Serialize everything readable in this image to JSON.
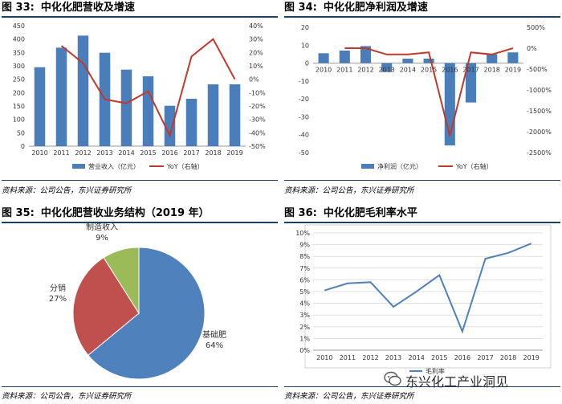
{
  "colors": {
    "bar": "#4a7ebb",
    "line": "#c0392b",
    "pie_blue": "#4f81bd",
    "pie_red": "#c0504d",
    "pie_green": "#9bbb59",
    "rule": "#1f3f66",
    "grid": "#d9d9d9"
  },
  "watermark": "东兴化工产业洞见",
  "chart_data": [
    {
      "type": "bar",
      "figure_label": "图 33:",
      "title": "中化化肥营收及增速",
      "categories": [
        "2010",
        "2011",
        "2012",
        "2013",
        "2014",
        "2015",
        "2016",
        "2017",
        "2018",
        "2019"
      ],
      "series": [
        {
          "name": "营业收入（亿元）",
          "type": "bar",
          "axis": "left",
          "values": [
            295,
            368,
            413,
            349,
            286,
            261,
            151,
            177,
            231,
            231
          ]
        },
        {
          "name": "YoY（右轴）",
          "type": "line",
          "axis": "right",
          "values": [
            null,
            25,
            12,
            -15,
            -18,
            -9,
            -42,
            17,
            30,
            0
          ]
        }
      ],
      "ylim": [
        0,
        450
      ],
      "yticks": [
        "0",
        "50",
        "100",
        "150",
        "200",
        "250",
        "300",
        "350",
        "400",
        "450"
      ],
      "y2lim": [
        -50,
        40
      ],
      "y2ticks": [
        "-50%",
        "-40%",
        "-30%",
        "-20%",
        "-10%",
        "0%",
        "10%",
        "20%",
        "30%",
        "40%"
      ],
      "legend_position": "bottom",
      "source": "资料来源：公司公告，东兴证券研究所"
    },
    {
      "type": "bar",
      "figure_label": "图 34:",
      "title": "中化化肥净利润及增速",
      "categories": [
        "2010",
        "2011",
        "2012",
        "2013",
        "2014",
        "2015",
        "2016",
        "2017",
        "2018",
        "2019"
      ],
      "series": [
        {
          "name": "净利润（亿元）",
          "type": "bar",
          "axis": "left",
          "values": [
            5.5,
            7,
            9.5,
            -5,
            2.5,
            2.5,
            -46,
            -22,
            5,
            6
          ]
        },
        {
          "name": "YoY（右轴）",
          "type": "line",
          "axis": "right",
          "values": [
            null,
            0,
            0,
            -150,
            -150,
            -100,
            -2100,
            -100,
            -150,
            0
          ]
        }
      ],
      "ylim": [
        -50,
        20
      ],
      "yticks": [
        "-50",
        "-40",
        "-30",
        "-20",
        "-10",
        "0",
        "10",
        "20"
      ],
      "y2lim": [
        -2500,
        500
      ],
      "y2ticks": [
        "-2500%",
        "-2000%",
        "-1500%",
        "-1000%",
        "-500%",
        "0%",
        "500%"
      ],
      "legend_position": "bottom",
      "source": "资料来源：公司公告，东兴证券研究所"
    },
    {
      "type": "pie",
      "figure_label": "图 35:",
      "title": "中化化肥营收业务结构（2019 年）",
      "slices": [
        {
          "label": "基础肥",
          "value": 64,
          "pct": "64%"
        },
        {
          "label": "分销",
          "value": 27,
          "pct": "27%"
        },
        {
          "label": "制造收入",
          "value": 9,
          "pct": "9%"
        }
      ],
      "source": "资料来源：公司公告，东兴证券研究所"
    },
    {
      "type": "line",
      "figure_label": "图 36:",
      "title": "中化化肥毛利率水平",
      "categories": [
        "2010",
        "2011",
        "2012",
        "2013",
        "2014",
        "2015",
        "2016",
        "2017",
        "2018",
        "2019"
      ],
      "series": [
        {
          "name": "毛利率",
          "values": [
            5.1,
            5.7,
            5.8,
            3.7,
            5.0,
            6.4,
            1.6,
            7.8,
            8.3,
            9.1
          ]
        }
      ],
      "ylim": [
        0,
        10
      ],
      "yticks": [
        "0%",
        "1%",
        "2%",
        "3%",
        "4%",
        "5%",
        "6%",
        "7%",
        "8%",
        "9%",
        "10%"
      ],
      "source": "资料来源：公司公告，东兴证券研究所"
    }
  ]
}
